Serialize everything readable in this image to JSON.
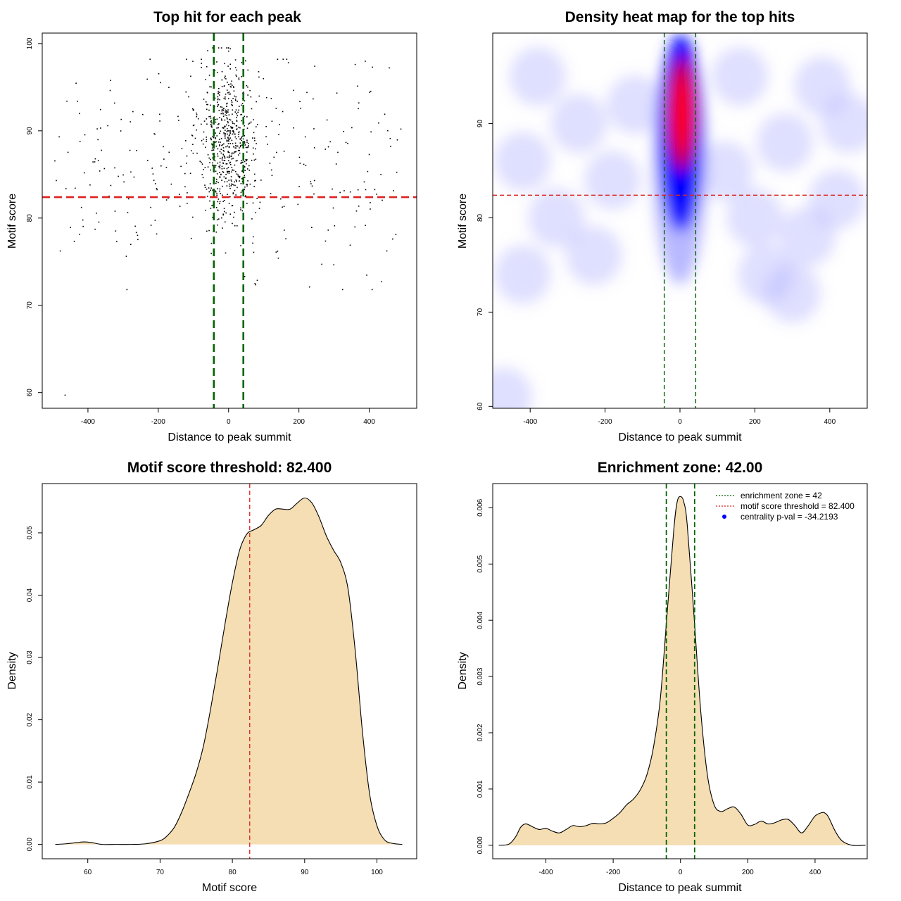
{
  "chart_data": [
    {
      "type": "scatter",
      "title": "Top hit for each peak",
      "xlabel": "Distance to peak summit",
      "ylabel": "Motif score",
      "xlim": [
        -530,
        535
      ],
      "ylim": [
        58.2,
        101.2
      ],
      "xticks": [
        "-400",
        "-200",
        "0",
        "200",
        "400"
      ],
      "xtick_values": [
        -400,
        -200,
        0,
        200,
        400
      ],
      "yticks": [
        "60",
        "70",
        "80",
        "90",
        "100"
      ],
      "ytick_values": [
        60,
        70,
        80,
        90,
        100
      ],
      "vlines": [
        -42,
        42
      ],
      "vline_color": "#006400",
      "hline": 82.4,
      "hline_color": "#dd2222",
      "point_color": "#000000",
      "n_points": 900,
      "approx_distribution": "dense cluster of hits centred at distance 0 (spread ~±60) with scores mostly 78–98, plus sparse background hits across -500..500 and scores 72–98; one outlier near (-465, 59.7)",
      "sample_points": [
        {
          "x": -465,
          "y": 59.7
        },
        {
          "x": 230,
          "y": 72.1
        },
        {
          "x": 435,
          "y": 72.7
        },
        {
          "x": 75,
          "y": 72.5
        },
        {
          "x": 490,
          "y": 90.2
        },
        {
          "x": -490,
          "y": 84.3
        },
        {
          "x": 360,
          "y": 97.6
        },
        {
          "x": 5,
          "y": 99.4
        },
        {
          "x": 245,
          "y": 97.4
        },
        {
          "x": 170,
          "y": 97.8
        },
        {
          "x": -120,
          "y": 98.2
        }
      ]
    },
    {
      "type": "heatmap",
      "title": "Density heat map for the top hits",
      "xlabel": "Distance to peak summit",
      "ylabel": "Motif score",
      "xlim": [
        -500,
        500
      ],
      "ylim": [
        59.8,
        99.6
      ],
      "xticks": [
        "-400",
        "-200",
        "0",
        "200",
        "400"
      ],
      "xtick_values": [
        -400,
        -200,
        0,
        200,
        400
      ],
      "yticks": [
        "60",
        "70",
        "80",
        "90"
      ],
      "ytick_values": [
        60,
        70,
        80,
        90
      ],
      "vlines": [
        -42,
        42
      ],
      "vline_color": "#006400",
      "hline": 82.4,
      "hline_color": "#dd2222",
      "color_scale": [
        "#ffffff",
        "#0000ff",
        "#ff0000"
      ],
      "peak": {
        "x": 5,
        "y": 91
      }
    },
    {
      "type": "area",
      "title": "Motif score threshold: 82.400",
      "xlabel": "Motif score",
      "ylabel": "Density",
      "xlim": [
        53.7,
        105.5
      ],
      "ylim": [
        -0.0023,
        0.0579
      ],
      "xticks": [
        "60",
        "70",
        "80",
        "90",
        "100"
      ],
      "xtick_values": [
        60,
        70,
        80,
        90,
        100
      ],
      "yticks": [
        "0.00",
        "0.01",
        "0.02",
        "0.03",
        "0.04",
        "0.05"
      ],
      "ytick_values": [
        0,
        0.01,
        0.02,
        0.03,
        0.04,
        0.05
      ],
      "vline": 82.4,
      "vline_color": "#dd2222",
      "fill_color": "#f5deb3",
      "x": [
        55.5,
        57,
        58.5,
        59.5,
        60.5,
        62,
        64,
        66,
        68,
        70,
        71,
        72,
        73,
        74,
        75,
        76,
        77,
        78,
        79,
        80,
        81,
        82,
        83,
        84,
        85,
        86,
        87,
        88,
        89,
        90,
        91,
        92,
        93,
        94,
        95,
        96,
        97,
        98,
        99,
        100,
        101,
        102,
        103.5
      ],
      "y": [
        0.0,
        0.0001,
        0.0003,
        0.0004,
        0.0003,
        0.0,
        0.0,
        0.0,
        0.0001,
        0.0006,
        0.0014,
        0.0028,
        0.0052,
        0.0082,
        0.0115,
        0.0158,
        0.0218,
        0.0285,
        0.0355,
        0.042,
        0.0472,
        0.0498,
        0.0505,
        0.0512,
        0.0528,
        0.0538,
        0.0538,
        0.0538,
        0.0548,
        0.0556,
        0.0548,
        0.0525,
        0.0495,
        0.0472,
        0.0452,
        0.041,
        0.031,
        0.018,
        0.008,
        0.003,
        0.0008,
        0.0002,
        0.0
      ]
    },
    {
      "type": "area",
      "title": "Enrichment zone: 42.00",
      "xlabel": "Distance to peak summit",
      "ylabel": "Density",
      "xlim": [
        -558,
        555
      ],
      "ylim": [
        -0.00024,
        0.00643
      ],
      "xticks": [
        "-400",
        "-200",
        "0",
        "200",
        "400"
      ],
      "xtick_values": [
        -400,
        -200,
        0,
        200,
        400
      ],
      "yticks": [
        "0.000",
        "0.001",
        "0.002",
        "0.003",
        "0.004",
        "0.005",
        "0.006"
      ],
      "ytick_values": [
        0,
        0.001,
        0.002,
        0.003,
        0.004,
        0.005,
        0.006
      ],
      "vlines": [
        -42,
        42
      ],
      "vline_color": "#006400",
      "fill_color": "#f5deb3",
      "x": [
        -540,
        -510,
        -490,
        -475,
        -460,
        -440,
        -420,
        -400,
        -380,
        -360,
        -340,
        -320,
        -300,
        -280,
        -260,
        -240,
        -220,
        -200,
        -180,
        -160,
        -140,
        -120,
        -100,
        -80,
        -60,
        -40,
        -20,
        -10,
        0,
        10,
        20,
        40,
        60,
        80,
        100,
        120,
        140,
        160,
        180,
        200,
        220,
        240,
        260,
        280,
        300,
        320,
        340,
        360,
        380,
        400,
        420,
        430,
        440,
        460,
        480,
        510,
        550
      ],
      "y": [
        0.0,
        2e-05,
        0.00015,
        0.00032,
        0.00038,
        0.00033,
        0.00028,
        0.0003,
        0.00025,
        0.00022,
        0.00028,
        0.00035,
        0.00033,
        0.00035,
        0.00039,
        0.00038,
        0.0004,
        0.00048,
        0.00058,
        0.00072,
        0.00082,
        0.00098,
        0.00125,
        0.00175,
        0.0026,
        0.0041,
        0.0056,
        0.0061,
        0.0062,
        0.0061,
        0.0057,
        0.0041,
        0.0024,
        0.00125,
        0.00072,
        0.0006,
        0.00065,
        0.00068,
        0.00055,
        0.00036,
        0.00037,
        0.00043,
        0.00038,
        0.0004,
        0.00045,
        0.00046,
        0.00035,
        0.00022,
        0.00035,
        0.00052,
        0.00058,
        0.00057,
        0.0005,
        0.00025,
        8e-05,
        0.0,
        0.0
      ],
      "legend": {
        "position": "top-right",
        "items": [
          {
            "label": "enrichment zone = 42",
            "type": "line",
            "color": "#006400",
            "dash": "dotted"
          },
          {
            "label": "motif score threshold = 82.400",
            "type": "line",
            "color": "#dd2222",
            "dash": "dotted"
          },
          {
            "label": "centrality p-val = -34.2193",
            "type": "point",
            "color": "#0000ff"
          }
        ]
      }
    }
  ]
}
